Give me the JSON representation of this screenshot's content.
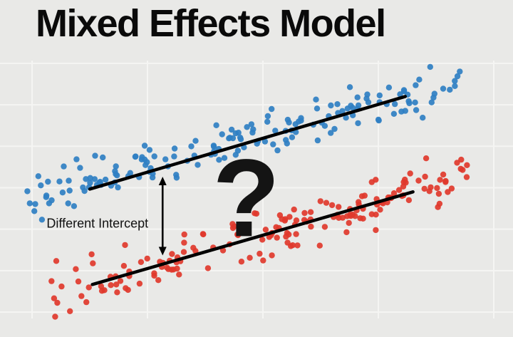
{
  "title": "Mixed Effects Model",
  "colors": {
    "background": "#e9e9e7",
    "grid": "#f5f5f3",
    "title_text": "#0a0a0a",
    "annotation_text": "#111111",
    "trend_line": "#000000",
    "series_blue": "#2f7fc3",
    "series_red": "#e0382c"
  },
  "chart_data": {
    "type": "scatter",
    "title": "Mixed Effects Model",
    "xlabel": "",
    "ylabel": "",
    "xlim": [
      0,
      10
    ],
    "ylim": [
      0,
      10
    ],
    "grid": true,
    "legend": false,
    "grid_lines": {
      "x": [
        0.625,
        2.875,
        5.125,
        7.375,
        9.625
      ],
      "y": [
        0.9,
        2.4,
        3.9,
        5.4,
        6.9,
        8.4,
        9.9
      ]
    },
    "series": [
      {
        "name": "group-a-upper-blue",
        "color": "#2f7fc3",
        "n": 175,
        "x_range": [
          0.5,
          9.0
        ],
        "slope": 0.5,
        "intercept": 4.75,
        "noise_sd": 0.4,
        "seed": 42,
        "point_radius": 4.2,
        "trend_line": {
          "x1": 1.75,
          "y1": 5.35,
          "x2": 7.9,
          "y2": 8.7
        }
      },
      {
        "name": "group-b-lower-red",
        "color": "#e0382c",
        "n": 175,
        "x_range": [
          1.0,
          9.3
        ],
        "slope": 0.5,
        "intercept": 1.15,
        "noise_sd": 0.45,
        "seed": 7,
        "point_radius": 4.2,
        "trend_line": {
          "x1": 1.8,
          "y1": 1.9,
          "x2": 8.05,
          "y2": 5.25
        }
      }
    ],
    "annotations": {
      "arrow": {
        "x": 3.17,
        "y_top": 5.8,
        "y_bottom": 2.95,
        "label": "Different Intercept",
        "label_x": 1.9,
        "label_y": 3.95
      },
      "question": {
        "text": "?",
        "x": 4.8,
        "y": 3.65
      }
    }
  }
}
